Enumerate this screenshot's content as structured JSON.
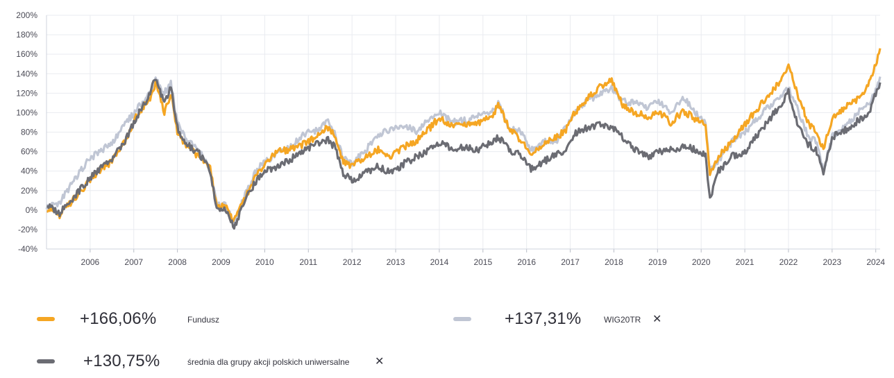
{
  "chart_data": {
    "type": "line",
    "xlim": [
      2005.0,
      2024.1
    ],
    "ylim": [
      -40,
      200
    ],
    "y_ticks": [
      -40,
      -20,
      0,
      20,
      40,
      60,
      80,
      100,
      120,
      140,
      160,
      180,
      200
    ],
    "y_tick_labels": [
      "-40%",
      "-20%",
      "0%",
      "20%",
      "40%",
      "60%",
      "80%",
      "100%",
      "120%",
      "140%",
      "160%",
      "180%",
      "200%"
    ],
    "x_ticks": [
      2006,
      2007,
      2008,
      2009,
      2010,
      2011,
      2012,
      2013,
      2014,
      2015,
      2016,
      2017,
      2018,
      2019,
      2020,
      2021,
      2022,
      2023,
      2024
    ],
    "x_tick_labels": [
      "2006",
      "2007",
      "2008",
      "2009",
      "2010",
      "2011",
      "2012",
      "2013",
      "2014",
      "2015",
      "2016",
      "2017",
      "2018",
      "2019",
      "2020",
      "2021",
      "2022",
      "2023",
      "2024"
    ],
    "grid": true,
    "series": [
      {
        "name": "WIG20TR",
        "color": "#c0c6d4",
        "x": [
          2005.0,
          2005.3,
          2005.6,
          2005.9,
          2006.2,
          2006.5,
          2006.8,
          2007.1,
          2007.35,
          2007.5,
          2007.7,
          2007.85,
          2008.0,
          2008.2,
          2008.5,
          2008.75,
          2008.9,
          2009.1,
          2009.3,
          2009.5,
          2009.8,
          2010.0,
          2010.3,
          2010.6,
          2010.9,
          2011.2,
          2011.45,
          2011.6,
          2011.8,
          2012.0,
          2012.3,
          2012.6,
          2012.9,
          2013.2,
          2013.5,
          2013.8,
          2014.0,
          2014.3,
          2014.6,
          2014.9,
          2015.2,
          2015.35,
          2015.6,
          2015.9,
          2016.1,
          2016.4,
          2016.7,
          2016.9,
          2017.1,
          2017.4,
          2017.7,
          2017.95,
          2018.2,
          2018.5,
          2018.8,
          2019.0,
          2019.3,
          2019.6,
          2019.9,
          2020.1,
          2020.2,
          2020.4,
          2020.7,
          2021.0,
          2021.3,
          2021.6,
          2021.85,
          2022.0,
          2022.2,
          2022.45,
          2022.65,
          2022.8,
          2023.0,
          2023.3,
          2023.6,
          2023.85,
          2024.0,
          2024.1
        ],
        "values": [
          3,
          8,
          28,
          48,
          60,
          68,
          88,
          105,
          118,
          135,
          120,
          130,
          90,
          72,
          62,
          40,
          5,
          5,
          -15,
          10,
          40,
          50,
          58,
          65,
          78,
          82,
          90,
          80,
          52,
          48,
          60,
          78,
          82,
          88,
          80,
          95,
          100,
          90,
          92,
          98,
          100,
          110,
          85,
          80,
          62,
          70,
          72,
          85,
          100,
          112,
          120,
          125,
          112,
          110,
          105,
          112,
          100,
          115,
          98,
          90,
          40,
          50,
          70,
          80,
          95,
          108,
          118,
          125,
          105,
          75,
          70,
          40,
          75,
          85,
          100,
          110,
          125,
          137
        ]
      },
      {
        "name": "Fundusz",
        "color": "#f5a623",
        "x": [
          2005.0,
          2005.3,
          2005.6,
          2005.9,
          2006.2,
          2006.5,
          2006.8,
          2007.1,
          2007.35,
          2007.5,
          2007.7,
          2007.85,
          2008.0,
          2008.2,
          2008.5,
          2008.75,
          2008.9,
          2009.1,
          2009.3,
          2009.5,
          2009.8,
          2010.0,
          2010.3,
          2010.6,
          2010.9,
          2011.2,
          2011.45,
          2011.6,
          2011.8,
          2012.0,
          2012.3,
          2012.6,
          2012.9,
          2013.2,
          2013.5,
          2013.8,
          2014.0,
          2014.3,
          2014.6,
          2014.9,
          2015.2,
          2015.35,
          2015.6,
          2015.9,
          2016.1,
          2016.4,
          2016.7,
          2016.9,
          2017.1,
          2017.4,
          2017.7,
          2017.95,
          2018.2,
          2018.5,
          2018.8,
          2019.0,
          2019.3,
          2019.6,
          2019.9,
          2020.1,
          2020.2,
          2020.4,
          2020.7,
          2021.0,
          2021.3,
          2021.6,
          2021.85,
          2022.0,
          2022.2,
          2022.45,
          2022.65,
          2022.8,
          2023.0,
          2023.3,
          2023.6,
          2023.85,
          2024.0,
          2024.1
        ],
        "values": [
          2,
          -5,
          10,
          25,
          40,
          50,
          70,
          100,
          112,
          130,
          100,
          120,
          80,
          65,
          55,
          42,
          5,
          5,
          -12,
          8,
          35,
          48,
          60,
          62,
          68,
          75,
          85,
          78,
          50,
          45,
          55,
          62,
          55,
          65,
          72,
          85,
          95,
          85,
          88,
          90,
          95,
          108,
          85,
          70,
          55,
          68,
          75,
          82,
          100,
          115,
          128,
          132,
          108,
          100,
          95,
          102,
          90,
          102,
          92,
          88,
          35,
          55,
          70,
          88,
          105,
          120,
          135,
          150,
          120,
          90,
          78,
          62,
          95,
          105,
          115,
          130,
          150,
          166
        ]
      },
      {
        "name": "średnia dla grupy akcji polskich uniwersalne",
        "color": "#6b6c73",
        "x": [
          2005.0,
          2005.3,
          2005.6,
          2005.9,
          2006.2,
          2006.5,
          2006.8,
          2007.1,
          2007.35,
          2007.5,
          2007.7,
          2007.85,
          2008.0,
          2008.2,
          2008.5,
          2008.75,
          2008.9,
          2009.1,
          2009.3,
          2009.5,
          2009.8,
          2010.0,
          2010.3,
          2010.6,
          2010.9,
          2011.2,
          2011.45,
          2011.6,
          2011.8,
          2012.0,
          2012.3,
          2012.6,
          2012.9,
          2013.2,
          2013.5,
          2013.8,
          2014.0,
          2014.3,
          2014.6,
          2014.9,
          2015.2,
          2015.35,
          2015.6,
          2015.9,
          2016.1,
          2016.4,
          2016.7,
          2016.9,
          2017.1,
          2017.4,
          2017.7,
          2017.95,
          2018.2,
          2018.5,
          2018.8,
          2019.0,
          2019.3,
          2019.6,
          2019.9,
          2020.1,
          2020.2,
          2020.4,
          2020.7,
          2021.0,
          2021.3,
          2021.6,
          2021.85,
          2022.0,
          2022.2,
          2022.45,
          2022.65,
          2022.8,
          2023.0,
          2023.3,
          2023.6,
          2023.85,
          2024.0,
          2024.1
        ],
        "values": [
          5,
          -3,
          12,
          28,
          42,
          52,
          72,
          98,
          118,
          135,
          110,
          125,
          85,
          68,
          58,
          40,
          0,
          0,
          -18,
          5,
          30,
          40,
          45,
          52,
          62,
          68,
          72,
          65,
          38,
          30,
          38,
          45,
          38,
          48,
          55,
          62,
          70,
          62,
          65,
          62,
          70,
          75,
          62,
          55,
          42,
          50,
          58,
          60,
          78,
          85,
          88,
          85,
          75,
          62,
          55,
          60,
          62,
          65,
          62,
          55,
          12,
          40,
          55,
          60,
          78,
          95,
          110,
          122,
          90,
          68,
          60,
          40,
          75,
          82,
          92,
          100,
          120,
          131
        ]
      }
    ]
  },
  "legend": {
    "fundusz": {
      "value": "+166,06%",
      "name": "Fundusz",
      "color": "#f5a623"
    },
    "wig": {
      "value": "+137,31%",
      "name": "WIG20TR",
      "color": "#c0c6d4",
      "remove": "✕"
    },
    "srednia": {
      "value": "+130,75%",
      "name": "średnia dla grupy akcji polskich uniwersalne",
      "color": "#6b6c73",
      "remove": "✕"
    }
  }
}
